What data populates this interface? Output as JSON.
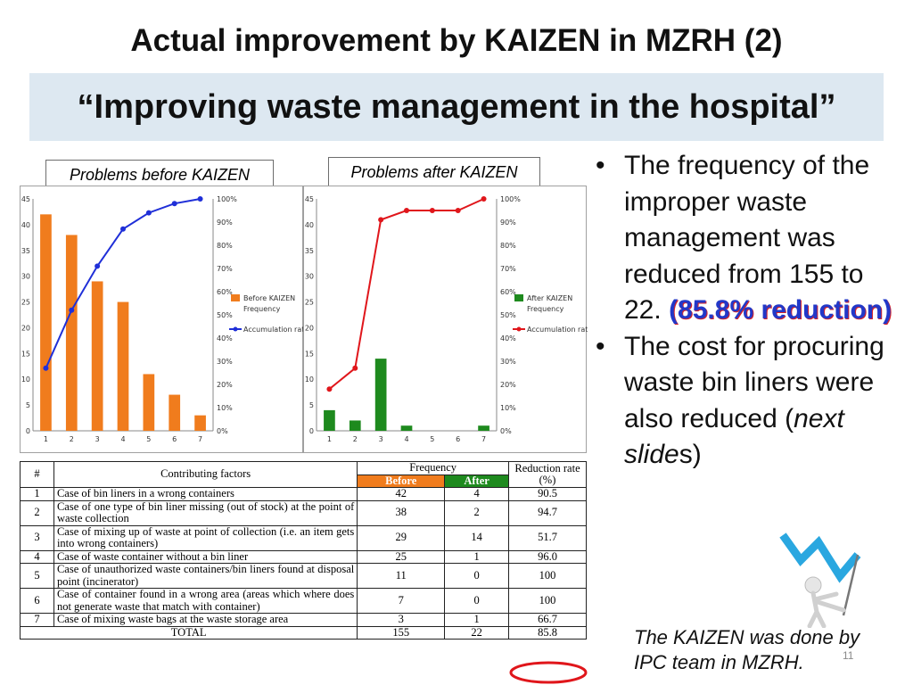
{
  "title": "Actual improvement by KAIZEN in MZRH (2)",
  "subtitle": "“Improving waste management in the hospital”",
  "chart_labels": {
    "before": "Problems before KAIZEN",
    "after": "Problems after KAIZEN"
  },
  "chart_data": [
    {
      "type": "bar",
      "title": "",
      "categories": [
        "1",
        "2",
        "3",
        "4",
        "5",
        "6",
        "7"
      ],
      "series": [
        {
          "name": "Before KAIZEN Frequency",
          "axis": "left",
          "values": [
            42,
            38,
            29,
            25,
            11,
            7,
            3
          ]
        },
        {
          "name": "Accumulation ratio",
          "type": "line",
          "axis": "right",
          "values": [
            27,
            52,
            71,
            87,
            94,
            98,
            100
          ]
        }
      ],
      "ylim": [
        0,
        45
      ],
      "y2lim": [
        0,
        100
      ],
      "yticks": [
        "0",
        "5",
        "10",
        "15",
        "20",
        "25",
        "30",
        "35",
        "40",
        "45"
      ],
      "y2ticks": [
        "0%",
        "10%",
        "20%",
        "30%",
        "40%",
        "50%",
        "60%",
        "70%",
        "80%",
        "90%",
        "100%"
      ],
      "legend": [
        "Before KAIZEN",
        "Frequency",
        "Accumulation ratio"
      ],
      "legend_position": "right",
      "colors": {
        "bar": "#f07c1d",
        "line": "#1f2fd8"
      }
    },
    {
      "type": "bar",
      "title": "",
      "categories": [
        "1",
        "2",
        "3",
        "4",
        "5",
        "6",
        "7"
      ],
      "series": [
        {
          "name": "After KAIZEN Frequency",
          "axis": "left",
          "values": [
            4,
            2,
            14,
            1,
            0,
            0,
            1
          ]
        },
        {
          "name": "Accumulation ratio",
          "type": "line",
          "axis": "right",
          "values": [
            18,
            27,
            91,
            95,
            95,
            95,
            100
          ]
        }
      ],
      "ylim": [
        0,
        45
      ],
      "y2lim": [
        0,
        100
      ],
      "yticks": [
        "0",
        "5",
        "10",
        "15",
        "20",
        "25",
        "30",
        "35",
        "40",
        "45"
      ],
      "y2ticks": [
        "0%",
        "10%",
        "20%",
        "30%",
        "40%",
        "50%",
        "60%",
        "70%",
        "80%",
        "90%",
        "100%"
      ],
      "legend": [
        "After KAIZEN",
        "Frequency",
        "Accumulation ratio"
      ],
      "legend_position": "right",
      "colors": {
        "bar": "#1e8a1e",
        "line": "#e0161b"
      }
    }
  ],
  "table": {
    "headers": {
      "num": "#",
      "factor": "Contributing factors",
      "frequency": "Frequency",
      "before": "Before",
      "after": "After",
      "reduction": "Reduction rate (%)"
    },
    "rows": [
      {
        "num": "1",
        "factor": "Case of bin liners in a wrong containers",
        "before": "42",
        "after": "4",
        "reduction": "90.5"
      },
      {
        "num": "2",
        "factor": "Case of one type of bin liner missing (out of stock) at the point of waste collection",
        "before": "38",
        "after": "2",
        "reduction": "94.7"
      },
      {
        "num": "3",
        "factor": "Case of mixing up of waste at point of collection (i.e. an item gets into wrong containers)",
        "before": "29",
        "after": "14",
        "reduction": "51.7"
      },
      {
        "num": "4",
        "factor": "Case of waste container without a bin liner",
        "before": "25",
        "after": "1",
        "reduction": "96.0"
      },
      {
        "num": "5",
        "factor": "Case of unauthorized waste containers/bin liners found at disposal point (incinerator)",
        "before": "11",
        "after": "0",
        "reduction": "100"
      },
      {
        "num": "6",
        "factor": "Case of container found in a wrong area (areas which where does not generate waste that match with container)",
        "before": "7",
        "after": "0",
        "reduction": "100"
      },
      {
        "num": "7",
        "factor": "Case of mixing waste bags at the waste storage area",
        "before": "3",
        "after": "1",
        "reduction": "66.7"
      }
    ],
    "total": {
      "label": "TOTAL",
      "before": "155",
      "after": "22",
      "reduction": "85.8"
    }
  },
  "bullets": {
    "b1_text": "The frequency of the improper waste management was reduced from 155 to 22.",
    "b1_highlight": "(85.8% reduction)",
    "b2_prefix": "The cost for procuring waste bin liners were also reduced (",
    "b2_italic_1": "next slide",
    "b2_italic_2": "s",
    "b2_suffix": ")"
  },
  "note": "The KAIZEN was done by IPC team in MZRH.",
  "page_number": "11",
  "colors": {
    "subtitle_band": "#dde8f1",
    "highlight": "#2238c8",
    "circle": "#e0161b"
  }
}
